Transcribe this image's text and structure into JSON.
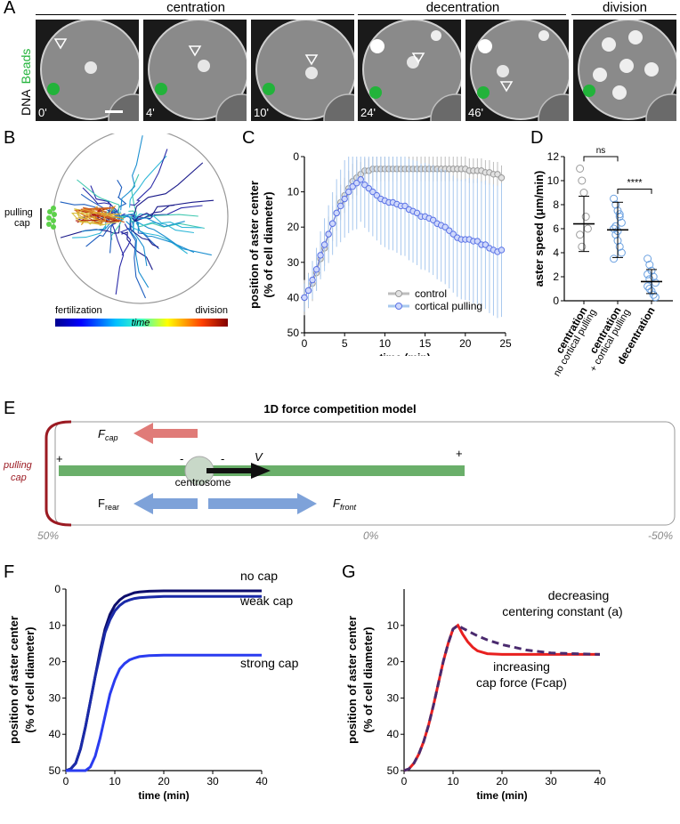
{
  "panel_letters": {
    "a": "A",
    "b": "B",
    "c": "C",
    "d": "D",
    "e": "E",
    "f": "F",
    "g": "G"
  },
  "panelA": {
    "phases": [
      "centration",
      "decentration",
      "division"
    ],
    "channel_dna": "DNA",
    "channel_beads": "Beads",
    "timepoints": [
      "0'",
      "4'",
      "10'",
      "24'",
      "46'",
      ""
    ],
    "colors": {
      "beads": "#22b33a",
      "dna": "#e6e6e6",
      "background": "#1a1a1a"
    }
  },
  "panelB": {
    "pulling_label_1": "pulling",
    "pulling_label_2": "cap",
    "time_start": "fertilization",
    "time_end": "division",
    "time_label": "time"
  },
  "panelC": {
    "ylabel_1": "position of aster center",
    "ylabel_2": "(% of cell diameter)",
    "xlabel": "time (min)",
    "legend": [
      "control",
      "cortical pulling"
    ]
  },
  "panelD": {
    "ylabel": "aster speed (μm/min)",
    "categories": [
      {
        "main": "centration",
        "sub": "no cortical pulling"
      },
      {
        "main": "centration",
        "sub": "+ cortical pulling"
      },
      {
        "main": "decentration",
        "sub": ""
      }
    ],
    "sig_ns": "ns",
    "sig_star": "****"
  },
  "panelE": {
    "title": "1D force competition model",
    "pulling_1": "pulling",
    "pulling_2": "cap",
    "f_cap": "F",
    "f_cap_sub": "cap",
    "f_rear": "F",
    "f_rear_sub": "rear",
    "f_front": "F",
    "f_front_sub": "front",
    "velocity": "V",
    "centrosome": "centrosome",
    "plus": "+",
    "minus": "-",
    "scale": [
      "50%",
      "0%",
      "-50%"
    ]
  },
  "panelF": {
    "ylabel_1": "position of aster center",
    "ylabel_2": "(% of cell diameter)",
    "xlabel": "time (min)",
    "curve_labels": [
      "no cap",
      "weak cap",
      "strong cap"
    ]
  },
  "panelG": {
    "ylabel_1": "position of aster center",
    "ylabel_2": "(% of cell diameter)",
    "xlabel": "time (min)",
    "label_1a": "decreasing",
    "label_1b": "centering constant (a)",
    "label_2a": "increasing",
    "label_2b": "cap force (Fcap)"
  },
  "chart_data": [
    {
      "type": "line",
      "panel": "C",
      "xlabel": "time (min)",
      "ylabel": "position of aster center (% of cell diameter)",
      "xlim": [
        0,
        25
      ],
      "ylim": [
        50,
        0
      ],
      "y_inverted": true,
      "xticks": [
        0,
        5,
        10,
        15,
        20,
        25
      ],
      "yticks": [
        0,
        10,
        20,
        30,
        40,
        50
      ],
      "series": [
        {
          "name": "control",
          "color": "#9a9a9a",
          "x": [
            0,
            0.5,
            1,
            1.5,
            2,
            2.5,
            3,
            3.5,
            4,
            4.5,
            5,
            5.5,
            6,
            6.5,
            7,
            7.5,
            8,
            8.5,
            9,
            9.5,
            10,
            10.5,
            11,
            11.5,
            12,
            12.5,
            13,
            13.5,
            14,
            14.5,
            15,
            15.5,
            16,
            16.5,
            17,
            17.5,
            18,
            18.5,
            19,
            19.5,
            20,
            20.5,
            21,
            21.5,
            22,
            22.5,
            23,
            23.5,
            24,
            24.5
          ],
          "y": [
            40,
            38,
            36,
            33,
            29,
            26,
            22,
            19,
            16,
            13,
            11,
            9,
            7,
            6,
            5,
            4,
            4,
            3.5,
            3.5,
            3.5,
            3.5,
            3.5,
            3.5,
            3.5,
            3.5,
            3.5,
            3.5,
            3.5,
            3.5,
            3.5,
            3.5,
            3.5,
            3.5,
            3.5,
            3.5,
            3.5,
            3.5,
            3.5,
            3.5,
            3.5,
            3.5,
            4,
            4,
            4,
            4,
            4.5,
            4.5,
            5,
            5,
            6
          ]
        },
        {
          "name": "cortical pulling",
          "color": "#5b73e6",
          "x": [
            0,
            0.5,
            1,
            1.5,
            2,
            2.5,
            3,
            3.5,
            4,
            4.5,
            5,
            5.5,
            6,
            6.5,
            7,
            7.5,
            8,
            8.5,
            9,
            9.5,
            10,
            10.5,
            11,
            11.5,
            12,
            12.5,
            13,
            13.5,
            14,
            14.5,
            15,
            15.5,
            16,
            16.5,
            17,
            17.5,
            18,
            18.5,
            19,
            19.5,
            20,
            20.5,
            21,
            21.5,
            22,
            22.5,
            23,
            23.5,
            24,
            24.5
          ],
          "y": [
            40,
            38,
            35,
            32,
            28,
            25,
            22,
            19,
            16,
            14,
            12,
            10,
            8.5,
            7.5,
            6.5,
            8,
            9,
            10,
            11,
            12,
            12.5,
            13,
            13,
            13.5,
            14,
            14,
            15,
            15.5,
            16,
            17,
            17,
            17.5,
            18,
            19,
            19.5,
            20,
            21,
            22,
            23,
            23.5,
            23.5,
            23.5,
            24,
            24,
            25,
            25,
            26,
            26.5,
            27,
            26.5
          ]
        }
      ]
    },
    {
      "type": "scatter",
      "panel": "D",
      "ylabel": "aster speed (μm/min)",
      "ylim": [
        0,
        12
      ],
      "yticks": [
        0,
        2,
        4,
        6,
        8,
        10,
        12
      ],
      "categories": [
        "centration no cortical pulling",
        "centration + cortical pulling",
        "decentration"
      ],
      "means": [
        6.4,
        5.9,
        1.6
      ],
      "sd": [
        2.3,
        2.3,
        1.0
      ],
      "points": [
        [
          11,
          10,
          9,
          7,
          6,
          5.5,
          4.5
        ],
        [
          8.5,
          8,
          7.5,
          7,
          6.5,
          6,
          5.5,
          5,
          4.5,
          4,
          3.5,
          6.2,
          5.8,
          7.2
        ],
        [
          3.5,
          3,
          2.5,
          2,
          1.5,
          1.2,
          1,
          0.8,
          0.5,
          0.3,
          2.2,
          1.8
        ]
      ],
      "significance": [
        {
          "pair": [
            1,
            2
          ],
          "label": "ns"
        },
        {
          "pair": [
            2,
            3
          ],
          "label": "****"
        }
      ]
    },
    {
      "type": "line",
      "panel": "F",
      "xlabel": "time (min)",
      "ylabel": "position of aster center (% of cell diameter)",
      "xlim": [
        0,
        40
      ],
      "ylim": [
        50,
        0
      ],
      "y_inverted": true,
      "xticks": [
        0,
        10,
        20,
        30,
        40
      ],
      "yticks": [
        0,
        10,
        20,
        30,
        40,
        50
      ],
      "series": [
        {
          "name": "no cap",
          "color": "#0d0d6b",
          "x": [
            0,
            1,
            2,
            3,
            4,
            5,
            6,
            7,
            8,
            9,
            10,
            11,
            12,
            13,
            14,
            15,
            17,
            20,
            25,
            30,
            40
          ],
          "y": [
            50,
            49.5,
            48,
            44,
            38,
            31,
            24,
            17,
            11,
            7,
            4.5,
            3,
            2,
            1.5,
            1,
            0.8,
            0.6,
            0.5,
            0.5,
            0.5,
            0.5
          ]
        },
        {
          "name": "weak cap",
          "color": "#1a2aa8",
          "x": [
            0,
            1,
            2,
            3,
            4,
            5,
            6,
            7,
            8,
            9,
            10,
            11,
            12,
            13,
            14,
            15,
            17,
            20,
            25,
            30,
            40
          ],
          "y": [
            50,
            49.5,
            48,
            44,
            38,
            31,
            24,
            18,
            12,
            8.5,
            6,
            4.5,
            3.5,
            3,
            2.6,
            2.4,
            2.2,
            2,
            2,
            2,
            2
          ]
        },
        {
          "name": "strong cap",
          "color": "#2a3cf0",
          "x": [
            0,
            2,
            4,
            5,
            6,
            7,
            8,
            9,
            10,
            11,
            12,
            13,
            14,
            15,
            17,
            20,
            25,
            30,
            40
          ],
          "y": [
            50,
            50,
            50,
            49,
            46,
            41,
            35,
            29,
            25,
            22,
            20.5,
            19.5,
            19,
            18.6,
            18.3,
            18.2,
            18.2,
            18.2,
            18.2
          ]
        }
      ]
    },
    {
      "type": "line",
      "panel": "G",
      "xlabel": "time (min)",
      "ylabel": "position of aster center (% of cell diameter)",
      "xlim": [
        0,
        40
      ],
      "ylim": [
        50,
        0
      ],
      "yticks": [
        10,
        20,
        30,
        40,
        50
      ],
      "xticks": [
        0,
        10,
        20,
        30,
        40
      ],
      "y_inverted": true,
      "series": [
        {
          "name": "increasing cap force (Fcap)",
          "color": "#e8201f",
          "x": [
            0,
            1,
            2,
            3,
            4,
            5,
            6,
            7,
            8,
            9,
            10,
            11,
            12,
            13,
            14,
            15,
            17,
            20,
            25,
            30,
            40
          ],
          "y": [
            50,
            49.5,
            48,
            45.5,
            42,
            37.5,
            32,
            26,
            20,
            15,
            11,
            10,
            12.5,
            14.5,
            16,
            17,
            17.8,
            18,
            18,
            18,
            18
          ]
        },
        {
          "name": "decreasing centering constant (a)",
          "color": "#4a2a6e",
          "dash": true,
          "x": [
            0,
            1,
            2,
            3,
            4,
            5,
            6,
            7,
            8,
            9,
            10,
            11,
            12,
            13,
            14,
            15,
            17,
            20,
            25,
            30,
            40
          ],
          "y": [
            50,
            49.5,
            48,
            45.5,
            42,
            37.5,
            32,
            26,
            20,
            15,
            11,
            10,
            10.8,
            11.5,
            12.2,
            12.9,
            14,
            15.3,
            16.8,
            17.6,
            18
          ]
        }
      ]
    }
  ]
}
